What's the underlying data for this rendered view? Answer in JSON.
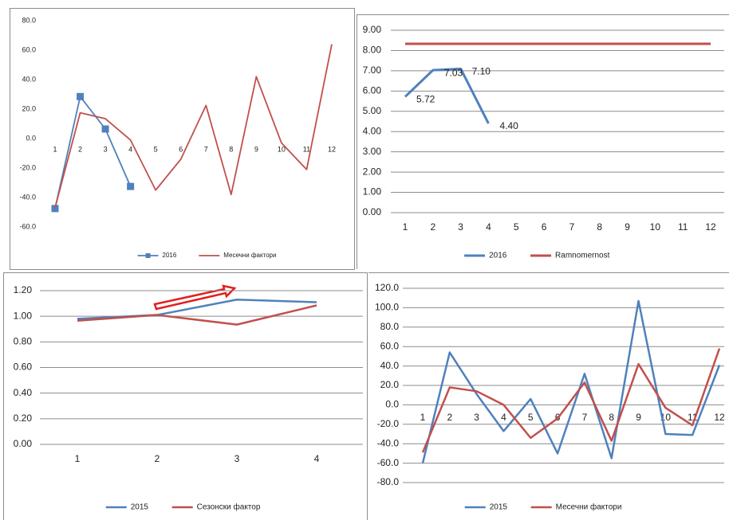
{
  "chart_data": [
    {
      "type": "line",
      "categories": [
        "1",
        "2",
        "3",
        "4",
        "5",
        "6",
        "7",
        "8",
        "9",
        "10",
        "11",
        "12"
      ],
      "series": [
        {
          "name": "2016",
          "color": "#4f81bd",
          "marker": "square",
          "values": [
            -47.5,
            28.5,
            6.5,
            -32.5,
            null,
            null,
            null,
            null,
            null,
            null,
            null,
            null
          ]
        },
        {
          "name": "Месечни фактори",
          "color": "#c0504d",
          "values": [
            -47,
            17.5,
            13.5,
            -1,
            -35,
            -14,
            22.5,
            -38,
            42,
            -3,
            -21,
            64
          ]
        }
      ],
      "ylim": [
        -60,
        80
      ],
      "yticks": [
        {
          "value": -60,
          "label": "-60.0"
        },
        {
          "value": -40,
          "label": "-40.0"
        },
        {
          "value": -20,
          "label": "-20.0"
        },
        {
          "value": 0,
          "label": "0.0"
        },
        {
          "value": 20,
          "label": "20.0"
        },
        {
          "value": 40,
          "label": "40.0"
        },
        {
          "value": 60,
          "label": "60.0"
        },
        {
          "value": 80,
          "label": "80.0"
        }
      ],
      "grid": false
    },
    {
      "type": "line",
      "categories": [
        "1",
        "2",
        "3",
        "4",
        "5",
        "6",
        "7",
        "8",
        "9",
        "10",
        "11",
        "12"
      ],
      "series": [
        {
          "name": "2016",
          "color": "#4f81bd",
          "values": [
            5.72,
            7.03,
            7.1,
            4.4,
            null,
            null,
            null,
            null,
            null,
            null,
            null,
            null
          ],
          "value_labels": [
            "5.72",
            "7.03",
            "7.10",
            "4.40",
            null,
            null,
            null,
            null,
            null,
            null,
            null,
            null
          ]
        },
        {
          "name": "Ramnomernost",
          "color": "#c0504d",
          "values": [
            8.33,
            8.33,
            8.33,
            8.33,
            8.33,
            8.33,
            8.33,
            8.33,
            8.33,
            8.33,
            8.33,
            8.33
          ]
        }
      ],
      "ylim": [
        0,
        9
      ],
      "yticks": [
        {
          "value": 0,
          "label": "0.00"
        },
        {
          "value": 1,
          "label": "1.00"
        },
        {
          "value": 2,
          "label": "2.00"
        },
        {
          "value": 3,
          "label": "3.00"
        },
        {
          "value": 4,
          "label": "4.00"
        },
        {
          "value": 5,
          "label": "5.00"
        },
        {
          "value": 6,
          "label": "6.00"
        },
        {
          "value": 7,
          "label": "7.00"
        },
        {
          "value": 8,
          "label": "8.00"
        },
        {
          "value": 9,
          "label": "9.00"
        }
      ],
      "grid": true
    },
    {
      "type": "line",
      "categories": [
        "1",
        "2",
        "3",
        "4"
      ],
      "series": [
        {
          "name": "2015",
          "color": "#4f81bd",
          "values": [
            0.98,
            1.01,
            1.13,
            1.11
          ]
        },
        {
          "name": "Сезонски фактор",
          "color": "#c0504d",
          "values": [
            0.965,
            1.01,
            0.935,
            1.085
          ]
        }
      ],
      "ylim": [
        0,
        1.2
      ],
      "yticks": [
        {
          "value": 0,
          "label": "0.00"
        },
        {
          "value": 0.2,
          "label": "0.20"
        },
        {
          "value": 0.4,
          "label": "0.40"
        },
        {
          "value": 0.6,
          "label": "0.60"
        },
        {
          "value": 0.8,
          "label": "0.80"
        },
        {
          "value": 1,
          "label": "1.00"
        },
        {
          "value": 1.2,
          "label": "1.20"
        }
      ],
      "grid": true
    },
    {
      "type": "line",
      "categories": [
        "1",
        "2",
        "3",
        "4",
        "5",
        "6",
        "7",
        "8",
        "9",
        "10",
        "11",
        "12"
      ],
      "series": [
        {
          "name": "2015",
          "color": "#4f81bd",
          "values": [
            -60,
            54,
            11,
            -27,
            6,
            -50,
            32,
            -55,
            107,
            -30,
            -31,
            41
          ]
        },
        {
          "name": "Месечни фактори",
          "color": "#c0504d",
          "values": [
            -49,
            18,
            14,
            0,
            -34,
            -14,
            23,
            -37,
            42,
            -3,
            -21,
            58
          ]
        }
      ],
      "ylim": [
        -80,
        120
      ],
      "yticks": [
        {
          "value": -80,
          "label": "-80.0"
        },
        {
          "value": -60,
          "label": "-60.0"
        },
        {
          "value": -40,
          "label": "-40.0"
        },
        {
          "value": -20,
          "label": "-20.0"
        },
        {
          "value": 0,
          "label": "0.0"
        },
        {
          "value": 20,
          "label": "20.0"
        },
        {
          "value": 40,
          "label": "40.0"
        },
        {
          "value": 60,
          "label": "60.0"
        },
        {
          "value": 80,
          "label": "80.0"
        },
        {
          "value": 100,
          "label": "100.0"
        },
        {
          "value": 120,
          "label": "120.0"
        }
      ],
      "grid": true
    }
  ]
}
